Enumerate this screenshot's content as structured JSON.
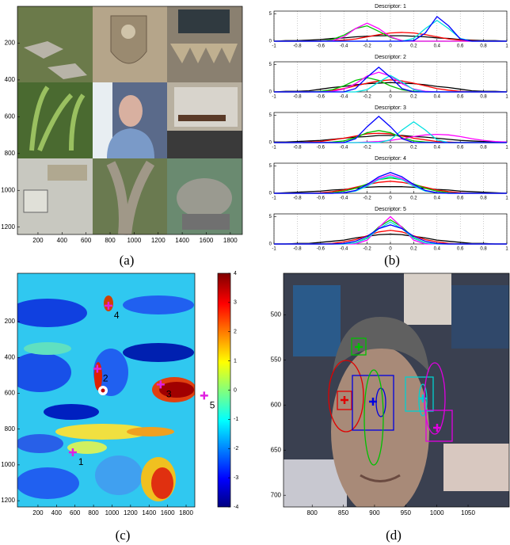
{
  "chart_data": [
    {
      "type": "image",
      "caption": "(a)",
      "xlim": [
        29,
        1900
      ],
      "ylim": [
        0,
        1240
      ],
      "yreverse": true,
      "xticks": [
        200,
        400,
        600,
        800,
        1000,
        1200,
        1400,
        1600,
        1800
      ],
      "yticks": [
        200,
        400,
        600,
        800,
        1000,
        1200
      ]
    },
    {
      "type": "density",
      "caption": "(b)",
      "xlim": [
        -1,
        1
      ],
      "ylim": [
        0,
        5.5
      ],
      "grid": true,
      "xticks": [
        -1,
        -0.8,
        -0.6,
        -0.4,
        -0.2,
        0,
        0.2,
        0.4,
        0.6,
        0.8,
        1
      ],
      "yticks": [
        0,
        5
      ],
      "x": [
        -1,
        -0.9,
        -0.8,
        -0.7,
        -0.6,
        -0.5,
        -0.4,
        -0.3,
        -0.2,
        -0.1,
        0,
        0.1,
        0.2,
        0.3,
        0.4,
        0.5,
        0.6,
        0.7,
        0.8,
        0.9,
        1
      ],
      "subplots": [
        {
          "title": "Descriptor: 1",
          "series": [
            {
              "color": "#000000",
              "values": [
                0,
                0.1,
                0.1,
                0.2,
                0.3,
                0.5,
                0.6,
                0.8,
                0.9,
                1,
                1,
                1,
                0.9,
                0.8,
                0.6,
                0.5,
                0.3,
                0.2,
                0.1,
                0.1,
                0
              ]
            },
            {
              "color": "#ff0000",
              "values": [
                0,
                0,
                0,
                0,
                0,
                0.1,
                0.2,
                0.4,
                0.8,
                1.2,
                1.5,
                1.6,
                1.5,
                1.2,
                0.8,
                0.4,
                0.2,
                0.1,
                0,
                0,
                0
              ]
            },
            {
              "color": "#00c000",
              "values": [
                0,
                0,
                0,
                0,
                0,
                0.3,
                1.1,
                2.3,
                2.8,
                1.8,
                0.7,
                0.1,
                0,
                0,
                0,
                0,
                0,
                0,
                0,
                0,
                0
              ]
            },
            {
              "color": "#ff00ff",
              "values": [
                0,
                0,
                0,
                0,
                0,
                0.1,
                0.8,
                2.3,
                3.3,
                2.3,
                0.8,
                0.1,
                0,
                0,
                0,
                0,
                0,
                0,
                0,
                0,
                0
              ]
            },
            {
              "color": "#00e0e0",
              "values": [
                0,
                0,
                0,
                0,
                0,
                0,
                0,
                0,
                0,
                0,
                0,
                0,
                0.5,
                2.3,
                3.8,
                2.3,
                0.5,
                0,
                0,
                0,
                0
              ]
            },
            {
              "color": "#0000ff",
              "values": [
                0,
                0,
                0,
                0,
                0,
                0,
                0,
                0,
                0,
                0,
                0,
                0,
                0.1,
                1.5,
                4.5,
                2.8,
                0.4,
                0,
                0,
                0,
                0
              ]
            }
          ]
        },
        {
          "title": "Descriptor: 2",
          "series": [
            {
              "color": "#000000",
              "values": [
                0,
                0.1,
                0.1,
                0.2,
                0.5,
                0.8,
                1,
                1.3,
                1.5,
                1.6,
                1.7,
                1.6,
                1.5,
                1.3,
                1,
                0.8,
                0.5,
                0.2,
                0.1,
                0.1,
                0
              ]
            },
            {
              "color": "#ff0000",
              "values": [
                0,
                0,
                0,
                0,
                0.1,
                0.3,
                0.6,
                1.1,
                1.6,
                2,
                2.2,
                2,
                1.6,
                1.1,
                0.6,
                0.3,
                0.1,
                0,
                0,
                0,
                0
              ]
            },
            {
              "color": "#00c000",
              "values": [
                0,
                0,
                0,
                0,
                0.1,
                0.4,
                1.1,
                2.1,
                2.6,
                2.1,
                1.1,
                0.4,
                0.1,
                0,
                0,
                0,
                0,
                0,
                0,
                0,
                0
              ]
            },
            {
              "color": "#ff00ff",
              "values": [
                0,
                0,
                0,
                0,
                0,
                0.1,
                0.5,
                1.5,
                2.9,
                3.6,
                2.9,
                1.5,
                0.5,
                0.1,
                0,
                0,
                0,
                0,
                0,
                0,
                0
              ]
            },
            {
              "color": "#00e0e0",
              "values": [
                0,
                0,
                0,
                0,
                0,
                0,
                0,
                0,
                0.4,
                1.8,
                3,
                1.8,
                0.4,
                0,
                0,
                0,
                0,
                0,
                0,
                0,
                0
              ]
            },
            {
              "color": "#0000ff",
              "values": [
                0,
                0,
                0,
                0,
                0,
                0,
                0,
                0.6,
                2.7,
                4.5,
                2.7,
                0.6,
                0,
                0,
                0,
                0,
                0,
                0,
                0,
                0,
                0
              ]
            }
          ]
        },
        {
          "title": "Descriptor: 3",
          "series": [
            {
              "color": "#000000",
              "values": [
                0.1,
                0.1,
                0.2,
                0.3,
                0.4,
                0.6,
                0.8,
                1,
                1.1,
                1.3,
                1.3,
                1.3,
                1.1,
                1,
                0.8,
                0.6,
                0.4,
                0.3,
                0.2,
                0.1,
                0.1
              ]
            },
            {
              "color": "#ff0000",
              "values": [
                0,
                0,
                0,
                0.1,
                0.2,
                0.5,
                0.8,
                1.2,
                1.6,
                1.7,
                1.6,
                1.2,
                0.8,
                0.5,
                0.2,
                0.1,
                0,
                0,
                0,
                0,
                0
              ]
            },
            {
              "color": "#00c000",
              "values": [
                0,
                0,
                0,
                0,
                0,
                0.1,
                0.3,
                0.9,
                1.8,
                2.2,
                1.8,
                0.9,
                0.3,
                0.1,
                0,
                0,
                0,
                0,
                0,
                0,
                0
              ]
            },
            {
              "color": "#ff00ff",
              "values": [
                0,
                0,
                0,
                0,
                0,
                0,
                0,
                0,
                0.1,
                0.2,
                0.4,
                0.7,
                1.1,
                1.4,
                1.5,
                1.4,
                1.1,
                0.7,
                0.4,
                0.2,
                0.1
              ]
            },
            {
              "color": "#00e0e0",
              "values": [
                0,
                0,
                0,
                0,
                0,
                0,
                0,
                0,
                0,
                0,
                0.5,
                2.3,
                3.8,
                2.3,
                0.5,
                0,
                0,
                0,
                0,
                0,
                0
              ]
            },
            {
              "color": "#0000ff",
              "values": [
                0,
                0,
                0,
                0,
                0,
                0,
                0,
                0.7,
                2.9,
                4.8,
                2.9,
                0.7,
                0,
                0,
                0,
                0,
                0,
                0,
                0,
                0,
                0
              ]
            }
          ]
        },
        {
          "title": "Descriptor: 4",
          "series": [
            {
              "color": "#000000",
              "values": [
                0,
                0.1,
                0.2,
                0.3,
                0.4,
                0.6,
                0.7,
                0.9,
                1.1,
                1.2,
                1.2,
                1.2,
                1.1,
                0.9,
                0.7,
                0.6,
                0.4,
                0.3,
                0.2,
                0.1,
                0
              ]
            },
            {
              "color": "#ff0000",
              "values": [
                0,
                0,
                0,
                0,
                0.1,
                0.3,
                0.6,
                1.1,
                1.6,
                2,
                2.2,
                2,
                1.6,
                1.1,
                0.6,
                0.3,
                0.1,
                0,
                0,
                0,
                0
              ]
            },
            {
              "color": "#00c000",
              "values": [
                0,
                0,
                0,
                0,
                0,
                0.1,
                0.4,
                0.9,
                1.7,
                2.5,
                2.8,
                2.5,
                1.7,
                0.9,
                0.4,
                0.1,
                0,
                0,
                0,
                0,
                0
              ]
            },
            {
              "color": "#ff00ff",
              "values": [
                0,
                0,
                0,
                0,
                0,
                0,
                0.1,
                0.5,
                1.4,
                2.7,
                3.4,
                2.7,
                1.4,
                0.5,
                0.1,
                0,
                0,
                0,
                0,
                0,
                0
              ]
            },
            {
              "color": "#00e0e0",
              "values": [
                0,
                0,
                0,
                0,
                0,
                0,
                0.1,
                0.4,
                1.3,
                2.5,
                3.1,
                2.5,
                1.3,
                0.4,
                0.1,
                0,
                0,
                0,
                0,
                0,
                0
              ]
            },
            {
              "color": "#0000ff",
              "values": [
                0,
                0,
                0,
                0,
                0,
                0,
                0.1,
                0.5,
                1.6,
                3,
                3.8,
                3,
                1.6,
                0.5,
                0.1,
                0,
                0,
                0,
                0,
                0,
                0
              ]
            }
          ]
        },
        {
          "title": "Descriptor: 5",
          "series": [
            {
              "color": "#000000",
              "values": [
                0,
                0,
                0.1,
                0.1,
                0.3,
                0.5,
                0.7,
                1.1,
                1.4,
                1.7,
                1.8,
                1.7,
                1.4,
                1.1,
                0.7,
                0.5,
                0.3,
                0.1,
                0.1,
                0,
                0
              ]
            },
            {
              "color": "#ff0000",
              "values": [
                0,
                0,
                0,
                0,
                0,
                0.1,
                0.4,
                0.8,
                1.5,
                2.2,
                2.5,
                2.2,
                1.5,
                0.8,
                0.4,
                0.1,
                0,
                0,
                0,
                0,
                0
              ]
            },
            {
              "color": "#00c000",
              "values": [
                0,
                0,
                0,
                0,
                0,
                0,
                0,
                0.2,
                1.1,
                3.1,
                4.4,
                3.1,
                1.1,
                0.2,
                0,
                0,
                0,
                0,
                0,
                0,
                0
              ]
            },
            {
              "color": "#ff00ff",
              "values": [
                0,
                0,
                0,
                0,
                0,
                0,
                0,
                0,
                0.7,
                3,
                5,
                3,
                0.7,
                0,
                0,
                0,
                0,
                0,
                0,
                0,
                0
              ]
            },
            {
              "color": "#00e0e0",
              "values": [
                0,
                0,
                0,
                0,
                0,
                0,
                0,
                0.2,
                1,
                2.8,
                4,
                2.8,
                1,
                0.2,
                0,
                0,
                0,
                0,
                0,
                0,
                0
              ]
            },
            {
              "color": "#0000ff",
              "values": [
                0,
                0,
                0,
                0,
                0,
                0,
                0.1,
                0.5,
                1.4,
                2.8,
                3.5,
                2.8,
                1.4,
                0.5,
                0.1,
                0,
                0,
                0,
                0,
                0,
                0
              ]
            }
          ]
        }
      ]
    },
    {
      "type": "heatmap",
      "caption": "(c)",
      "xlim": [
        -22,
        1894
      ],
      "ylim": [
        -70,
        1235
      ],
      "yreverse": true,
      "xticks": [
        200,
        400,
        600,
        800,
        1000,
        1200,
        1400,
        1600,
        1800
      ],
      "yticks": [
        200,
        400,
        600,
        800,
        1000,
        1200
      ],
      "colorbar": {
        "lim": [
          -4,
          4
        ],
        "ticks": [
          -4,
          -3,
          -2,
          -1,
          0,
          1,
          2,
          3,
          4
        ]
      },
      "markers": [
        {
          "label": "1",
          "x": 576,
          "y": 930,
          "color": "#e020e0"
        },
        {
          "label": "2",
          "x": 841,
          "y": 463,
          "color": "#e020e0"
        },
        {
          "label": "3",
          "x": 1525,
          "y": 551,
          "color": "#e020e0"
        },
        {
          "label": "4",
          "x": 961,
          "y": 111,
          "color": "#e020e0"
        },
        {
          "label": "5",
          "x": 1995,
          "y": 613,
          "color": "#e020e0"
        }
      ]
    },
    {
      "type": "image",
      "caption": "(d)",
      "xlim": [
        754,
        1116
      ],
      "ylim": [
        454,
        713
      ],
      "yreverse": true,
      "xticks": [
        800,
        850,
        900,
        950,
        1000,
        1050
      ],
      "yticks": [
        500,
        550,
        600,
        650,
        700
      ]
    }
  ]
}
